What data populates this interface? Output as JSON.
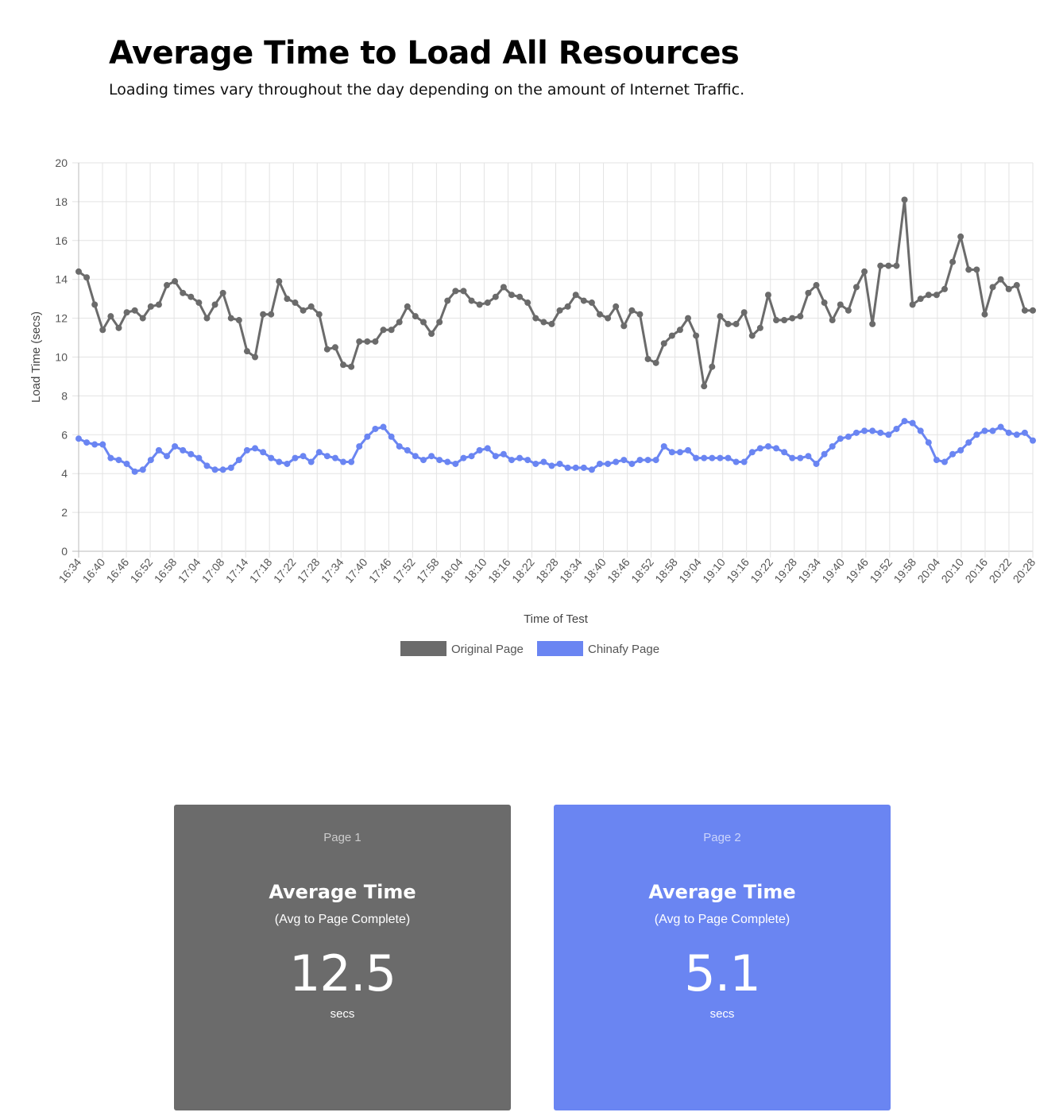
{
  "header": {
    "title": "Average Time to Load All Resources",
    "subtitle": "Loading times vary throughout the day depending on the amount of Internet Traffic."
  },
  "chart_data": {
    "type": "line",
    "xlabel": "Time of Test",
    "ylabel": "Load Time (secs)",
    "ylim": [
      0,
      20
    ],
    "y_ticks": [
      "0",
      "2",
      "4",
      "6",
      "8",
      "10",
      "12",
      "14",
      "16",
      "18",
      "20"
    ],
    "x_tick_labels": [
      "16:34",
      "16:40",
      "16:46",
      "16:52",
      "16:58",
      "17:04",
      "17:08",
      "17:14",
      "17:18",
      "17:22",
      "17:28",
      "17:34",
      "17:40",
      "17:46",
      "17:52",
      "17:58",
      "18:04",
      "18:10",
      "18:16",
      "18:22",
      "18:28",
      "18:34",
      "18:40",
      "18:46",
      "18:52",
      "18:58",
      "19:04",
      "19:10",
      "19:16",
      "19:22",
      "19:28",
      "19:34",
      "19:40",
      "19:46",
      "19:52",
      "19:58",
      "20:04",
      "20:10",
      "20:16",
      "20:22",
      "20:28"
    ],
    "grid": true,
    "legend_position": "bottom",
    "series": [
      {
        "name": "Original Page",
        "color": "#6b6b6b",
        "values": [
          14.4,
          14.1,
          12.7,
          11.4,
          12.1,
          11.5,
          12.3,
          12.4,
          12.0,
          12.6,
          12.7,
          13.7,
          13.9,
          13.3,
          13.1,
          12.8,
          12.0,
          12.7,
          13.3,
          12.0,
          11.9,
          10.3,
          10.0,
          12.2,
          12.2,
          13.9,
          13.0,
          12.8,
          12.4,
          12.6,
          12.2,
          10.4,
          10.5,
          9.6,
          9.5,
          10.8,
          10.8,
          10.8,
          11.4,
          11.4,
          11.8,
          12.6,
          12.1,
          11.8,
          11.2,
          11.8,
          12.9,
          13.4,
          13.4,
          12.9,
          12.7,
          12.8,
          13.1,
          13.6,
          13.2,
          13.1,
          12.8,
          12.0,
          11.8,
          11.7,
          12.4,
          12.6,
          13.2,
          12.9,
          12.8,
          12.2,
          12.0,
          12.6,
          11.6,
          12.4,
          12.2,
          9.9,
          9.7,
          10.7,
          11.1,
          11.4,
          12.0,
          11.1,
          8.5,
          9.5,
          12.1,
          11.7,
          11.7,
          12.3,
          11.1,
          11.5,
          13.2,
          11.9,
          11.9,
          12.0,
          12.1,
          13.3,
          13.7,
          12.8,
          11.9,
          12.7,
          12.4,
          13.6,
          14.4,
          11.7,
          14.7,
          14.7,
          14.7,
          18.1,
          12.7,
          13.0,
          13.2,
          13.2,
          13.5,
          14.9,
          16.2,
          14.5,
          14.5,
          12.2,
          13.6,
          14.0,
          13.5,
          13.7,
          12.4,
          12.4
        ]
      },
      {
        "name": "Chinafy Page",
        "color": "#6a85f2",
        "values": [
          5.8,
          5.6,
          5.5,
          5.5,
          4.8,
          4.7,
          4.5,
          4.1,
          4.2,
          4.7,
          5.2,
          4.9,
          5.4,
          5.2,
          5.0,
          4.8,
          4.4,
          4.2,
          4.2,
          4.3,
          4.7,
          5.2,
          5.3,
          5.1,
          4.8,
          4.6,
          4.5,
          4.8,
          4.9,
          4.6,
          5.1,
          4.9,
          4.8,
          4.6,
          4.6,
          5.4,
          5.9,
          6.3,
          6.4,
          5.9,
          5.4,
          5.2,
          4.9,
          4.7,
          4.9,
          4.7,
          4.6,
          4.5,
          4.8,
          4.9,
          5.2,
          5.3,
          4.9,
          5.0,
          4.7,
          4.8,
          4.7,
          4.5,
          4.6,
          4.4,
          4.5,
          4.3,
          4.3,
          4.3,
          4.2,
          4.5,
          4.5,
          4.6,
          4.7,
          4.5,
          4.7,
          4.7,
          4.7,
          5.4,
          5.1,
          5.1,
          5.2,
          4.8,
          4.8,
          4.8,
          4.8,
          4.8,
          4.6,
          4.6,
          5.1,
          5.3,
          5.4,
          5.3,
          5.1,
          4.8,
          4.8,
          4.9,
          4.5,
          5.0,
          5.4,
          5.8,
          5.9,
          6.1,
          6.2,
          6.2,
          6.1,
          6.0,
          6.3,
          6.7,
          6.6,
          6.2,
          5.6,
          4.7,
          4.6,
          5.0,
          5.2,
          5.6,
          6.0,
          6.2,
          6.2,
          6.4,
          6.1,
          6.0,
          6.1,
          5.7
        ]
      }
    ]
  },
  "cards": [
    {
      "page_label": "Page 1",
      "title": "Average Time",
      "subtitle": "(Avg to Page Complete)",
      "value": "12.5",
      "unit": "secs",
      "color": "#6b6b6b"
    },
    {
      "page_label": "Page 2",
      "title": "Average Time",
      "subtitle": "(Avg to Page Complete)",
      "value": "5.1",
      "unit": "secs",
      "color": "#6a85f2"
    }
  ]
}
